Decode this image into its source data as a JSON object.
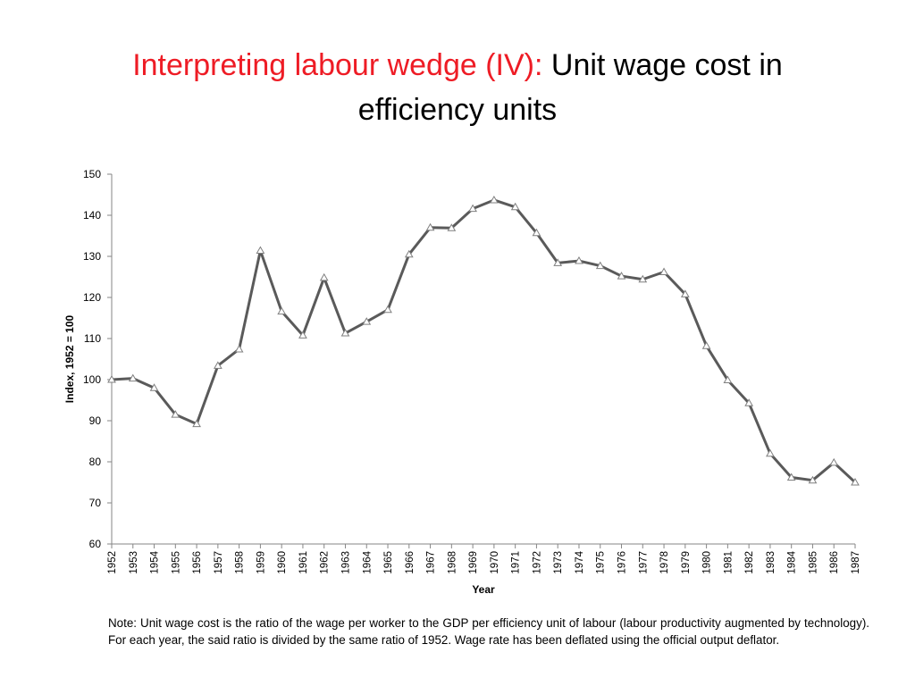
{
  "slide": {
    "title_lead": "Interpreting labour wedge (IV):",
    "title_main_line1": "Unit wage cost in",
    "title_main_line2": "efficiency units",
    "note": "Note: Unit wage cost is the ratio of the wage per worker to the GDP per efficiency unit of labour (labour productivity augmented by technology). For each year, the said ratio is divided by the same ratio of 1952. Wage rate has been deflated using the official output deflator."
  },
  "colors": {
    "line": "#5a5a5a",
    "marker": "#7f7f7f",
    "axis": "#868686",
    "title_accent": "#ee1c25"
  },
  "chart_data": {
    "type": "line",
    "title": "",
    "xlabel": "Year",
    "ylabel": "Index, 1952 = 100",
    "ylim": [
      60,
      150
    ],
    "yticks": [
      60,
      70,
      80,
      90,
      100,
      110,
      120,
      130,
      140,
      150
    ],
    "grid": false,
    "marker": "triangle",
    "categories": [
      "1952",
      "1953",
      "1954",
      "1955",
      "1956",
      "1957",
      "1958",
      "1959",
      "1960",
      "1961",
      "1962",
      "1963",
      "1964",
      "1965",
      "1966",
      "1967",
      "1968",
      "1969",
      "1970",
      "1971",
      "1972",
      "1973",
      "1974",
      "1975",
      "1976",
      "1977",
      "1978",
      "1979",
      "1980",
      "1981",
      "1982",
      "1983",
      "1984",
      "1985",
      "1986",
      "1987"
    ],
    "series": [
      {
        "name": "Unit wage cost in efficiency units",
        "values": [
          100,
          100.3,
          98,
          91.5,
          89.2,
          103.4,
          107.4,
          131.4,
          116.6,
          110.8,
          124.8,
          111.3,
          114.1,
          117,
          130.5,
          137,
          136.9,
          141.6,
          143.7,
          142,
          135.7,
          128.4,
          128.9,
          127.7,
          125.2,
          124.4,
          126.2,
          120.8,
          108.2,
          99.9,
          94.3,
          82,
          76.2,
          75.5,
          79.8,
          75
        ]
      }
    ]
  }
}
